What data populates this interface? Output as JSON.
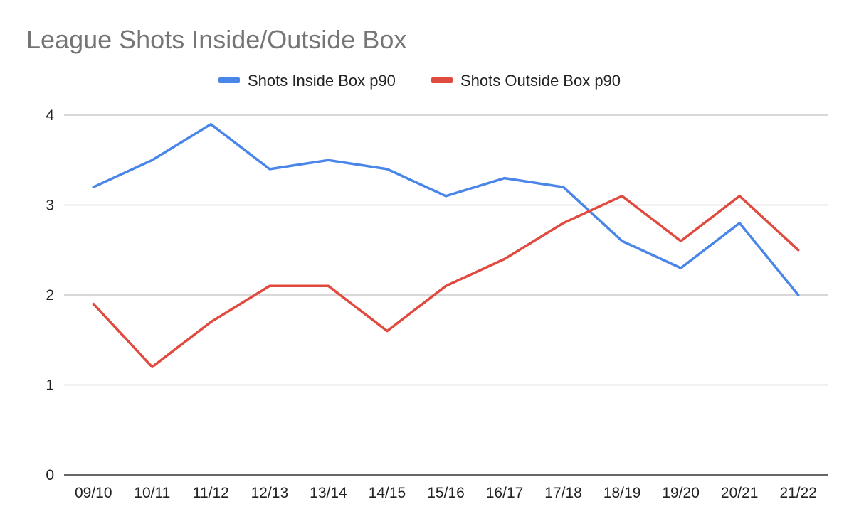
{
  "chart_data": {
    "type": "line",
    "title": "League Shots Inside/Outside Box",
    "xlabel": "",
    "ylabel": "",
    "categories": [
      "09/10",
      "10/11",
      "11/12",
      "12/13",
      "13/14",
      "14/15",
      "15/16",
      "16/17",
      "17/18",
      "18/19",
      "19/20",
      "20/21",
      "21/22"
    ],
    "ylim": [
      0,
      4
    ],
    "yticks": [
      0,
      1,
      2,
      3,
      4
    ],
    "grid": true,
    "legend_position": "top-center",
    "series": [
      {
        "name": "Shots Inside Box p90",
        "color": "#4a86e8",
        "values": [
          3.2,
          3.5,
          3.9,
          3.4,
          3.5,
          3.4,
          3.1,
          3.3,
          3.2,
          2.6,
          2.3,
          2.8,
          2.0
        ]
      },
      {
        "name": "Shots Outside Box p90",
        "color": "#e04a3f",
        "values": [
          1.9,
          1.2,
          1.7,
          2.1,
          2.1,
          1.6,
          2.1,
          2.4,
          2.8,
          3.1,
          2.6,
          3.1,
          2.5
        ]
      }
    ]
  }
}
